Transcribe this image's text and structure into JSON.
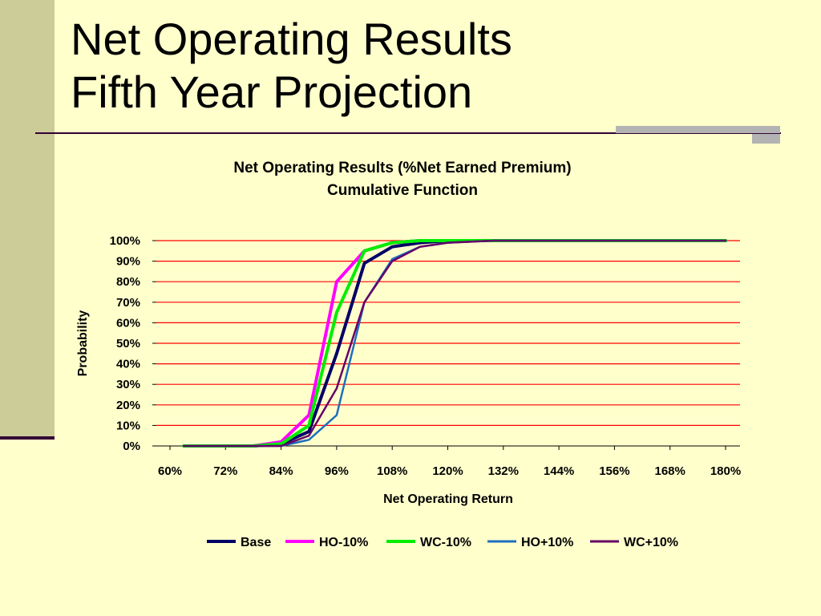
{
  "slide": {
    "title_line1": "Net Operating Results",
    "title_line2": "Fifth Year Projection"
  },
  "chart_data": {
    "type": "line",
    "title": "Net Operating Results (%Net Earned Premium)",
    "subtitle": "Cumulative Function",
    "xlabel": "Net Operating Return",
    "ylabel": "Probability",
    "xlim": [
      0.6,
      1.8
    ],
    "ylim": [
      0,
      1.0
    ],
    "x_ticks": [
      "60%",
      "72%",
      "84%",
      "96%",
      "108%",
      "120%",
      "132%",
      "144%",
      "156%",
      "168%",
      "180%"
    ],
    "y_ticks": [
      "0%",
      "10%",
      "20%",
      "30%",
      "40%",
      "50%",
      "60%",
      "70%",
      "80%",
      "90%",
      "100%"
    ],
    "grid": "horizontal",
    "legend_position": "bottom",
    "series": [
      {
        "name": "Base",
        "color": "#000066",
        "points": [
          [
            0.63,
            0.0
          ],
          [
            0.72,
            0.0
          ],
          [
            0.78,
            0.0
          ],
          [
            0.84,
            0.01
          ],
          [
            0.9,
            0.07
          ],
          [
            0.96,
            0.45
          ],
          [
            1.02,
            0.89
          ],
          [
            1.08,
            0.97
          ],
          [
            1.14,
            0.99
          ],
          [
            1.2,
            1.0
          ],
          [
            1.8,
            1.0
          ]
        ]
      },
      {
        "name": "HO-10%",
        "color": "#FF00FF",
        "points": [
          [
            0.63,
            0.0
          ],
          [
            0.72,
            0.0
          ],
          [
            0.78,
            0.0
          ],
          [
            0.84,
            0.02
          ],
          [
            0.9,
            0.15
          ],
          [
            0.96,
            0.8
          ],
          [
            1.02,
            0.95
          ],
          [
            1.08,
            0.99
          ],
          [
            1.14,
            1.0
          ],
          [
            1.8,
            1.0
          ]
        ]
      },
      {
        "name": "WC-10%",
        "color": "#00EE00",
        "points": [
          [
            0.63,
            0.0
          ],
          [
            0.72,
            0.0
          ],
          [
            0.78,
            0.0
          ],
          [
            0.84,
            0.01
          ],
          [
            0.9,
            0.1
          ],
          [
            0.96,
            0.65
          ],
          [
            1.02,
            0.95
          ],
          [
            1.08,
            0.99
          ],
          [
            1.14,
            1.0
          ],
          [
            1.8,
            1.0
          ]
        ]
      },
      {
        "name": "HO+10%",
        "color": "#1E6FBF",
        "points": [
          [
            0.63,
            0.0
          ],
          [
            0.72,
            0.0
          ],
          [
            0.78,
            0.0
          ],
          [
            0.84,
            0.0
          ],
          [
            0.9,
            0.03
          ],
          [
            0.96,
            0.15
          ],
          [
            1.02,
            0.7
          ],
          [
            1.08,
            0.91
          ],
          [
            1.14,
            0.97
          ],
          [
            1.2,
            0.99
          ],
          [
            1.3,
            1.0
          ],
          [
            1.8,
            1.0
          ]
        ]
      },
      {
        "name": "WC+10%",
        "color": "#660066",
        "points": [
          [
            0.63,
            0.0
          ],
          [
            0.72,
            0.0
          ],
          [
            0.78,
            0.0
          ],
          [
            0.84,
            0.0
          ],
          [
            0.9,
            0.05
          ],
          [
            0.96,
            0.28
          ],
          [
            1.02,
            0.7
          ],
          [
            1.08,
            0.9
          ],
          [
            1.14,
            0.97
          ],
          [
            1.2,
            0.99
          ],
          [
            1.3,
            1.0
          ],
          [
            1.8,
            1.0
          ]
        ]
      }
    ]
  }
}
